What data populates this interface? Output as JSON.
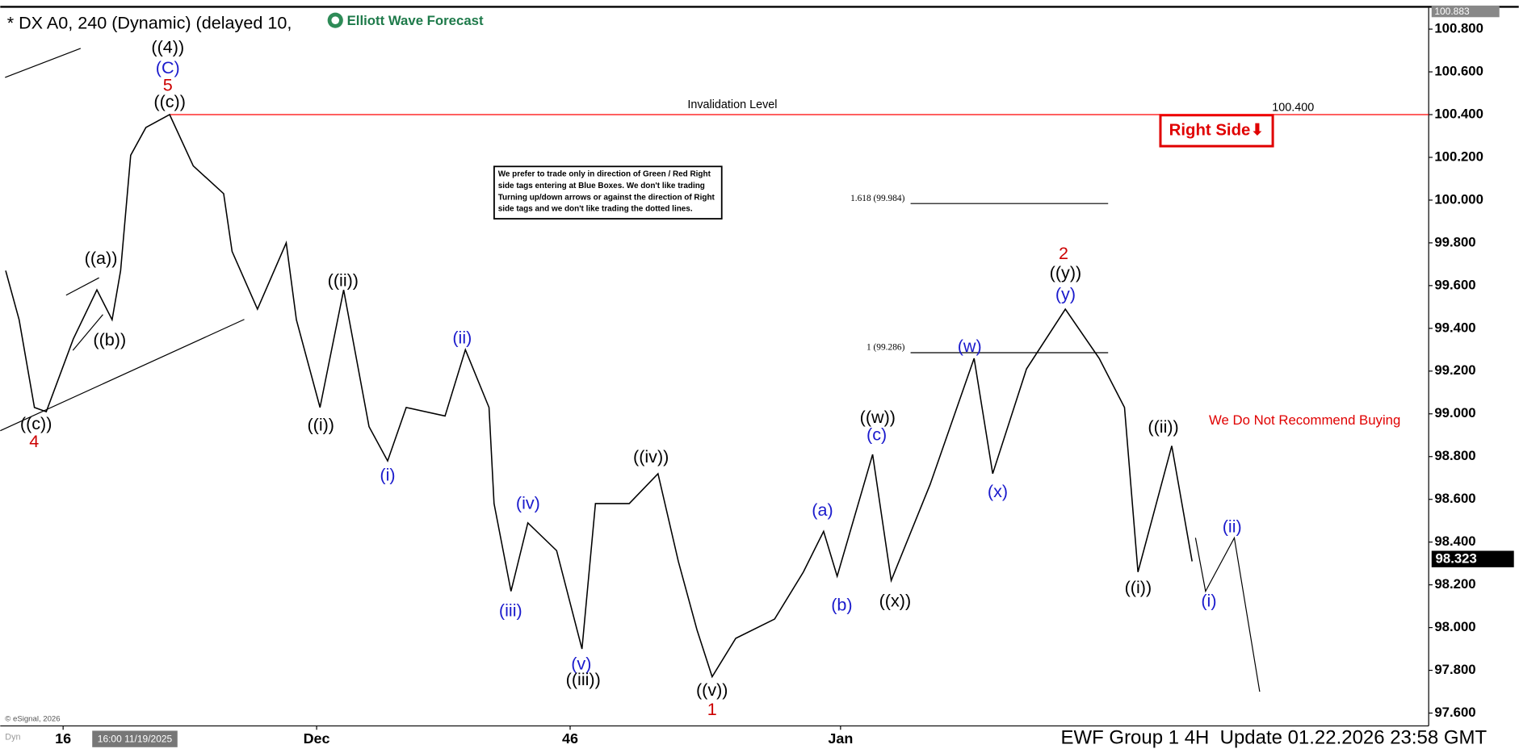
{
  "chart_data": {
    "type": "line",
    "title": "* DX A0, 240 (Dynamic) (delayed 10,",
    "brand": "Elliott Wave Forecast",
    "color": "#000000",
    "x": [
      12.6,
      13.4,
      14.3,
      15.0,
      16.6,
      18.0,
      18.9,
      19.4,
      20.0,
      20.9,
      22.3,
      23.7,
      25.5,
      26.0,
      27.5,
      29.2,
      29.8,
      31.2,
      32.6,
      34.1,
      35.2,
      36.3,
      38.6,
      39.8,
      41.2,
      41.5,
      42.5,
      43.5,
      45.2,
      46.7,
      47.5,
      49.5,
      51.2,
      52.4,
      53.5,
      54.4,
      55.8,
      58.1,
      59.8,
      61.0,
      61.8,
      63.9,
      65.0,
      67.3,
      69.9,
      71.0,
      73.0,
      75.3,
      77.3,
      78.8,
      79.6,
      81.6,
      82.8
    ],
    "values": [
      99.67,
      99.44,
      99.03,
      99.01,
      99.35,
      99.58,
      99.44,
      99.67,
      100.21,
      100.34,
      100.4,
      100.16,
      100.03,
      99.76,
      99.49,
      99.8,
      99.44,
      99.03,
      99.58,
      98.94,
      98.78,
      99.03,
      98.99,
      99.3,
      99.03,
      98.58,
      98.17,
      98.49,
      98.36,
      97.9,
      98.58,
      98.58,
      98.72,
      98.31,
      97.99,
      97.77,
      97.95,
      98.04,
      98.26,
      98.45,
      98.24,
      98.81,
      98.22,
      98.67,
      99.26,
      98.72,
      99.21,
      99.49,
      99.26,
      99.03,
      98.26,
      98.85,
      98.31
    ],
    "projection": {
      "x": [
        83.0,
        83.6,
        85.3,
        86.8
      ],
      "values": [
        98.42,
        98.17,
        98.42,
        97.7
      ]
    },
    "xlim": [
      12.28,
      96.8
    ],
    "xticks": [
      16,
      {
        "value": 31,
        "label": "Dec"
      },
      46,
      {
        "value": 62,
        "label": "Jan"
      }
    ],
    "ylim": [
      97.54,
      100.9
    ],
    "yticks": [
      {
        "value": 97.6,
        "label": "97.600"
      },
      {
        "value": 97.8,
        "label": "97.800"
      },
      {
        "value": 98.0,
        "label": "98.000"
      },
      {
        "value": 98.2,
        "label": "98.200"
      },
      {
        "value": 98.4,
        "label": "98.400"
      },
      {
        "value": 98.6,
        "label": "98.600"
      },
      {
        "value": 98.8,
        "label": "98.800"
      },
      {
        "value": 99.0,
        "label": "99.000"
      },
      {
        "value": 99.2,
        "label": "99.200"
      },
      {
        "value": 99.4,
        "label": "99.400"
      },
      {
        "value": 99.6,
        "label": "99.600"
      },
      {
        "value": 99.8,
        "label": "99.800"
      },
      {
        "value": 100.0,
        "label": "100.000"
      },
      {
        "value": 100.2,
        "label": "100.200"
      },
      {
        "value": 100.4,
        "label": "100.400"
      },
      {
        "value": 100.6,
        "label": "100.600"
      },
      {
        "value": 100.8,
        "label": "100.800"
      }
    ],
    "last_price": 98.323,
    "top_price": 100.883,
    "invalidation": {
      "label": "Invalidation Level",
      "value": 100.4,
      "value_label": "100.400",
      "color": "#ff0000"
    },
    "fib_levels": [
      {
        "label": "1.618 (99.984)",
        "value": 99.984
      },
      {
        "label": "1 (99.286)",
        "value": 99.286
      }
    ],
    "tag": "Right Side⬇",
    "warning": "We Do Not Recommend Buying",
    "note": [
      "We prefer to trade only in direction of Green / Red Right",
      "side tags entering at Blue Boxes. We don't like trading",
      "Turning up/down arrows or against the direction of Right",
      "side tags and we don't like trading the dotted lines."
    ],
    "wave_labels": [
      {
        "text": "((4))",
        "color": "#000000"
      },
      {
        "text": "(C)",
        "color": "#1a1acc"
      },
      {
        "text": "5",
        "color": "#cc0000"
      },
      {
        "text": "((c))",
        "color": "#000000"
      },
      {
        "text": "((a))",
        "color": "#000000"
      },
      {
        "text": "((b))",
        "color": "#000000"
      },
      {
        "text": "((c))",
        "color": "#000000"
      },
      {
        "text": "4",
        "color": "#cc0000"
      },
      {
        "text": "((ii))",
        "color": "#000000"
      },
      {
        "text": "((i))",
        "color": "#000000"
      },
      {
        "text": "(ii)",
        "color": "#1a1acc"
      },
      {
        "text": "(i)",
        "color": "#1a1acc"
      },
      {
        "text": "(iv)",
        "color": "#1a1acc"
      },
      {
        "text": "(iii)",
        "color": "#1a1acc"
      },
      {
        "text": "((iv))",
        "color": "#000000"
      },
      {
        "text": "(v)",
        "color": "#1a1acc"
      },
      {
        "text": "((iii))",
        "color": "#000000"
      },
      {
        "text": "((v))",
        "color": "#000000"
      },
      {
        "text": "1",
        "color": "#cc0000"
      },
      {
        "text": "(a)",
        "color": "#1a1acc"
      },
      {
        "text": "(b)",
        "color": "#1a1acc"
      },
      {
        "text": "((w))",
        "color": "#000000"
      },
      {
        "text": "(c)",
        "color": "#1a1acc"
      },
      {
        "text": "((x))",
        "color": "#000000"
      },
      {
        "text": "(w)",
        "color": "#1a1acc"
      },
      {
        "text": "(x)",
        "color": "#1a1acc"
      },
      {
        "text": "2",
        "color": "#cc0000"
      },
      {
        "text": "((y))",
        "color": "#000000"
      },
      {
        "text": "(y)",
        "color": "#1a1acc"
      },
      {
        "text": "((ii))",
        "color": "#000000"
      },
      {
        "text": "((i))",
        "color": "#000000"
      },
      {
        "text": "(ii)",
        "color": "#1a1acc"
      },
      {
        "text": "(i)",
        "color": "#1a1acc"
      }
    ],
    "platform": "Dyn",
    "cursor_date": "16:00 11/19/2025",
    "copyright": "© eSignal, 2026",
    "footer": "EWF Group 1 4H  Update 01.22.2026 23:58 GMT"
  }
}
